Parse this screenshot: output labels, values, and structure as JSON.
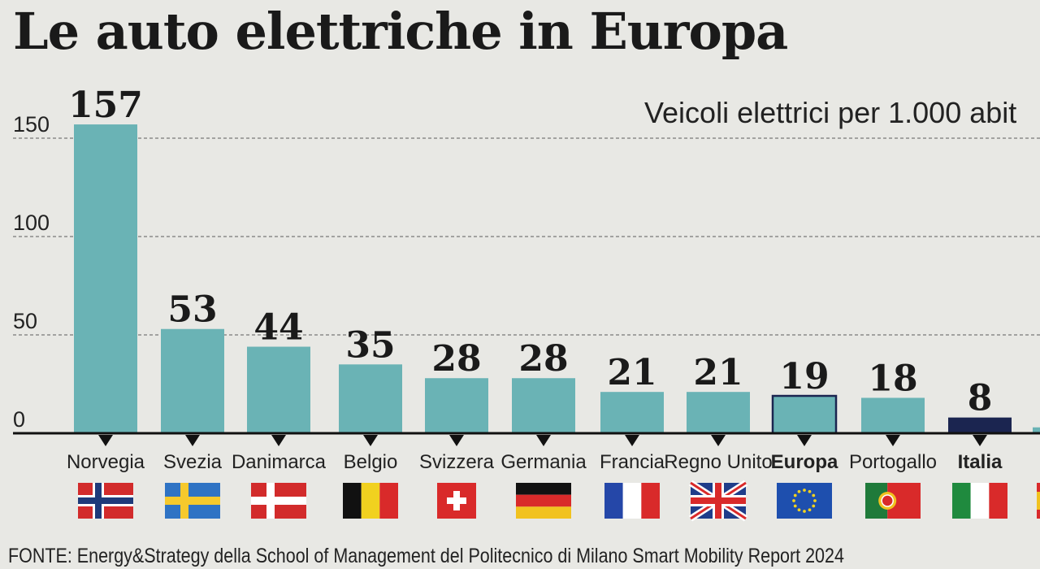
{
  "title": "Le auto elettriche in Europa",
  "subtitle": "Veicoli elettrici per 1.000 abit",
  "source": "FONTE: Energy&Strategy della School of Management del Politecnico di Milano Smart Mobility Report 2024",
  "colors": {
    "bar": "#6ab3b5",
    "highlight_fill": "#1b2550",
    "europa_outline": "#1b2550",
    "axis": "#111111",
    "grid": "#777777"
  },
  "chart_data": {
    "type": "bar",
    "title": "Le auto elettriche in Europa",
    "ylabel": "Veicoli elettrici per 1.000 abit",
    "ylim": [
      0,
      157
    ],
    "yticks": [
      0,
      50,
      100,
      150
    ],
    "grid": true,
    "categories": [
      "Norvegia",
      "Svezia",
      "Danimarca",
      "Belgio",
      "Svizzera",
      "Germania",
      "Francia",
      "Regno Unito",
      "Europa",
      "Portogallo",
      "Italia",
      ""
    ],
    "values": [
      157,
      53,
      44,
      35,
      28,
      28,
      21,
      21,
      19,
      18,
      8,
      3
    ],
    "value_labels": [
      "157",
      "53",
      "44",
      "35",
      "28",
      "28",
      "21",
      "21",
      "19",
      "18",
      "8",
      ""
    ],
    "bold_categories": [
      "Europa",
      "Italia"
    ],
    "highlight": {
      "Italia": "filled-dark",
      "Europa": "outlined"
    },
    "flags": [
      "norway-flag-icon",
      "sweden-flag-icon",
      "denmark-flag-icon",
      "belgium-flag-icon",
      "switzerland-flag-icon",
      "germany-flag-icon",
      "france-flag-icon",
      "uk-flag-icon",
      "eu-flag-icon",
      "portugal-flag-icon",
      "italy-flag-icon",
      "spain-flag-icon"
    ]
  }
}
